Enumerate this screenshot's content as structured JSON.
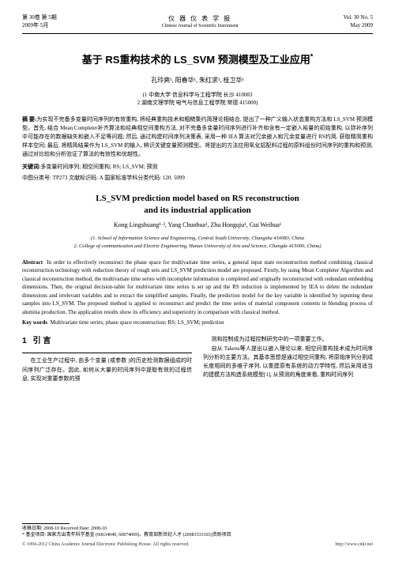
{
  "header": {
    "vol_cn": "第 30卷  第 5期",
    "date_cn": "2009年 5月",
    "journal_cn": "仪 器 仪 表 学 报",
    "journal_en": "Chinese Journal of Scientific Instrument",
    "vol_en": "Vol. 30 No. 5",
    "date_en": "May 2009"
  },
  "title_cn": "基于 RS重构技术的 LS_SVM 预测模型及工业应用",
  "title_sup": "*",
  "authors_cn": "孔玲爽¹, 阳春华¹, 朱红求¹, 桂卫华¹",
  "affil_cn_1": "(1 中南大学  信息科学与工程学院 长沙  410083",
  "affil_cn_2": "2 湖南文理学院  电气与信息工程学院 常德  415000)",
  "abs_cn_label": "摘  要:",
  "abs_cn": "为实现不完备多变量时间序列的有效重构, 将经典重构技术和粗糙集约简理论相结合, 提出了一种广义输入状态重构方法和 LS_SVM 预测模型。首先, 结合 Mean Completer补齐算法和经典相空间重构方法, 对不完备多变量时间序列进行补齐和含有一定嵌入裕量的初始重构, 以弥补序列中可能存在的数据缺失和嵌入不足等问题; 然后, 通过构建时间序列决策表, 采用一种 IEA 算法对冗余嵌入和冗余变量进行 RS约简, 获取精简重构样本空间; 最后, 将精简结果作为 LS_SVM 的输入, 辨识关键变量预测模型。将提出的方法应用氧化铝配料过程的原料组份时间序列的重构和预测, 通过对比较和分析验证了算法的有效性和优越性。",
  "kw_cn_label": "关键词:",
  "kw_cn": "多变量时间序列; 相空间重构; RS; LS_SVM; 预测",
  "class_cn": "中图分类号: TP273    文献标识码: A    国家标准学科分类代码: 120. 5099",
  "title_en_1": "LS_SVM prediction model based on RS reconstruction",
  "title_en_2": "and its industrial application",
  "authors_en": "Kong Lingshuang¹·², Yang Chunhua¹, Zhu Hongqiu¹, Gui Weihua¹",
  "affil_en_1": "(1. School of Information Science and Engineering, Central South University, Changsha 410083, China",
  "affil_en_2": "2. College of communication and Electric Engineering, Hunan University of Arts and Science, Changde 415000, China)",
  "abs_en_label": "Abstract",
  "abs_en": "In order to effectively reconstruct the phase space for multivariate time series, a general input state reconstruction method combining classical reconstruction technology with reduction theory of rough sets and LS_SVM prediction model are proposed. Firstly, by using Mean Completer Algorithm and classical reconstruction method, the multivariate time series with incomplete information is completed and originally reconstructed with redundant embedding dimensions. Then, the original decision-table for multivariate time series is set up and the RS reduction is implemented by IEA to delete the redundant dimensions and irrelevant variables and to extract the simplified samples. Finally, the prediction model for the key variable is identified by inputting these samples into LS_SVM. The proposed method is applied to reconstruct and predict the time series of material component contents in blending process of alumina production. The application results show its efficiency and superiority in comparison with classical method.",
  "kw_en_label": "Key words",
  "kw_en": "Multivariate time series; phase space reconstruction; RS; LS_SVM; prediction",
  "sec1_num": "1",
  "sec1_title": "引  言",
  "col1_p1": "在工业生产过程中, 由多个变量 (或参数 )的历史检测数据组成的时间序列广泛存在。因此, 如何从大量的时间序列中提取有效的过程信息, 实现对重要参数的预",
  "col2_p1": "测和控制成为过程控制研究中的一项重要工作。",
  "col2_p2": "自从 Takens等人提出以嵌入理论以来, 相空间重构技术成为时间序列分析的主要方法。其基本思想是通过相空间重构, 将原始序列分割成长度相同的多维子序列, 以重建原有系统的动力学特性, 然后采用适当的建模方法构造系统模型[1], 从预测的角度来看, 重构时间序列",
  "footer_date": "收稿日期: 2008-10    Received Date: 2008-10",
  "footer_fund": "* 基金项目: 国家杰出青年科学基金 (60634040, 60874069)、教育部新世纪人才 (20081533103)资助项目",
  "copyright_left": "© 1994-2012 China Academic Journal Electronic Publishing House. All rights reserved.",
  "copyright_right": "http://www.cnki.net"
}
